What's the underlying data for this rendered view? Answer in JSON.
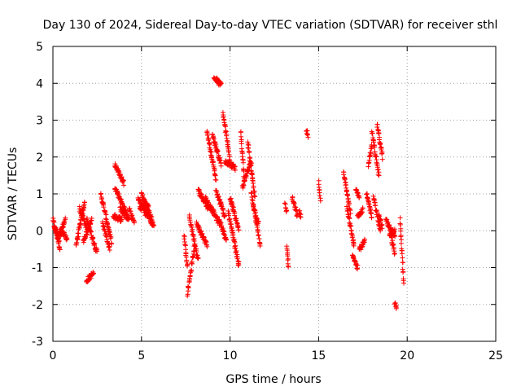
{
  "chart_data": {
    "type": "scatter",
    "title": "Day 130 of 2024, Sidereal Day-to-day VTEC variation (SDTVAR) for receiver sthl",
    "xlabel": "GPS time / hours",
    "ylabel": "SDTVAR / TECUs",
    "xlim": [
      0,
      25
    ],
    "ylim": [
      -3,
      5
    ],
    "xticks": [
      0,
      5,
      10,
      15,
      20,
      25
    ],
    "yticks": [
      -3,
      -2,
      -1,
      0,
      1,
      2,
      3,
      4,
      5
    ],
    "grid": true,
    "marker": "plus",
    "color": "#ff0000",
    "segments": [
      [
        0.0,
        0.4,
        0.3,
        -0.5
      ],
      [
        0.05,
        0.35,
        0.2,
        -0.3
      ],
      [
        0.3,
        0.7,
        -0.2,
        0.3
      ],
      [
        0.4,
        0.8,
        0.0,
        -0.2
      ],
      [
        1.3,
        1.8,
        -0.4,
        0.8
      ],
      [
        1.5,
        1.9,
        0.6,
        0.1
      ],
      [
        1.7,
        2.2,
        -0.3,
        0.3
      ],
      [
        1.9,
        2.3,
        -1.35,
        -1.15
      ],
      [
        1.9,
        2.5,
        0.3,
        -0.6
      ],
      [
        2.7,
        3.3,
        1.0,
        -0.3
      ],
      [
        2.8,
        3.2,
        0.2,
        -0.5
      ],
      [
        3.4,
        3.9,
        0.4,
        0.3
      ],
      [
        3.5,
        4.0,
        1.8,
        1.3
      ],
      [
        3.5,
        4.2,
        1.2,
        0.4
      ],
      [
        3.8,
        4.3,
        0.6,
        0.3
      ],
      [
        4.3,
        4.6,
        0.6,
        0.2
      ],
      [
        4.8,
        5.3,
        0.9,
        0.4
      ],
      [
        4.9,
        5.4,
        0.6,
        0.7
      ],
      [
        5.0,
        5.6,
        1.0,
        0.3
      ],
      [
        5.3,
        5.7,
        0.5,
        0.1
      ],
      [
        7.4,
        7.6,
        -0.1,
        -1.0
      ],
      [
        7.6,
        8.0,
        -1.7,
        -0.4
      ],
      [
        7.7,
        8.2,
        0.4,
        -0.8
      ],
      [
        8.1,
        8.7,
        0.2,
        -0.4
      ],
      [
        8.2,
        8.8,
        1.1,
        0.6
      ],
      [
        8.6,
        9.4,
        0.9,
        0.2
      ],
      [
        8.7,
        9.2,
        2.7,
        1.4
      ],
      [
        9.0,
        9.5,
        2.6,
        1.8
      ],
      [
        9.1,
        9.5,
        4.15,
        3.95
      ],
      [
        9.2,
        9.7,
        1.1,
        0.4
      ],
      [
        9.4,
        9.8,
        0.3,
        -0.3
      ],
      [
        9.6,
        10.0,
        3.2,
        1.9
      ],
      [
        9.7,
        10.3,
        1.9,
        1.7
      ],
      [
        9.9,
        10.5,
        0.5,
        -0.95
      ],
      [
        10.0,
        10.5,
        0.9,
        0.0
      ],
      [
        10.6,
        10.8,
        2.7,
        1.4
      ],
      [
        10.7,
        11.2,
        1.2,
        1.9
      ],
      [
        11.0,
        11.4,
        2.4,
        0.9
      ],
      [
        11.2,
        11.7,
        1.0,
        -0.4
      ],
      [
        11.3,
        11.6,
        0.7,
        0.2
      ],
      [
        13.1,
        13.2,
        0.7,
        0.5
      ],
      [
        13.2,
        13.3,
        -0.4,
        -1.0
      ],
      [
        13.5,
        13.8,
        0.9,
        0.4
      ],
      [
        13.9,
        14.0,
        0.5,
        0.4
      ],
      [
        14.3,
        14.4,
        2.7,
        2.6
      ],
      [
        15.0,
        15.1,
        1.3,
        0.8
      ],
      [
        16.4,
        16.8,
        1.6,
        0.5
      ],
      [
        16.6,
        17.0,
        0.6,
        -0.4
      ],
      [
        16.9,
        17.2,
        -0.7,
        -1.0
      ],
      [
        17.1,
        17.3,
        1.1,
        0.9
      ],
      [
        17.2,
        17.5,
        0.4,
        0.6
      ],
      [
        17.3,
        17.6,
        -0.5,
        -0.3
      ],
      [
        17.7,
        18.0,
        1.0,
        0.4
      ],
      [
        17.8,
        18.0,
        1.8,
        2.3
      ],
      [
        18.0,
        18.4,
        2.7,
        1.5
      ],
      [
        18.1,
        18.5,
        0.9,
        0.0
      ],
      [
        18.3,
        18.6,
        2.9,
        2.0
      ],
      [
        18.4,
        18.6,
        0.4,
        0.1
      ],
      [
        18.8,
        19.3,
        0.3,
        -0.2
      ],
      [
        19.0,
        19.3,
        -0.1,
        0.0
      ],
      [
        19.1,
        19.3,
        -0.2,
        -0.6
      ],
      [
        19.3,
        19.4,
        -2.0,
        -2.1
      ],
      [
        19.6,
        19.8,
        0.3,
        -1.4
      ]
    ]
  }
}
